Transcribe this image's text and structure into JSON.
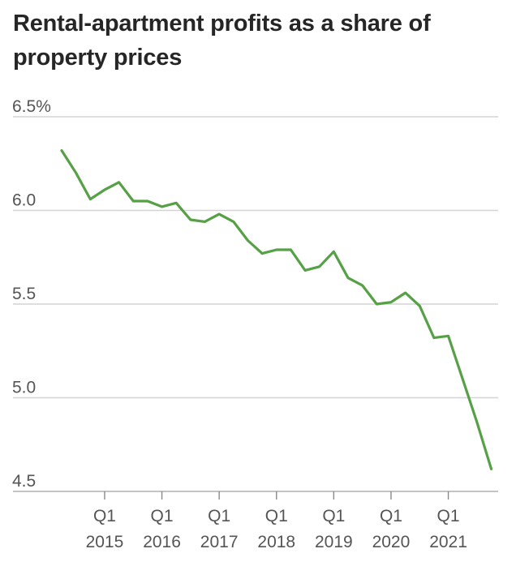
{
  "chart_data": {
    "type": "line",
    "title": "Rental-apartment profits as a share of property prices",
    "xlabel": "",
    "ylabel": "",
    "ylim": [
      4.5,
      6.5
    ],
    "y_ticks": [
      6.5,
      6.0,
      5.5,
      5.0,
      4.5
    ],
    "y_tick_labels": [
      "6.5%",
      "6.0",
      "5.5",
      "5.0",
      "4.5"
    ],
    "x_ticks": [
      {
        "index": 3,
        "q": "Q1",
        "year": "2015"
      },
      {
        "index": 7,
        "q": "Q1",
        "year": "2016"
      },
      {
        "index": 11,
        "q": "Q1",
        "year": "2017"
      },
      {
        "index": 15,
        "q": "Q1",
        "year": "2018"
      },
      {
        "index": 19,
        "q": "Q1",
        "year": "2019"
      },
      {
        "index": 23,
        "q": "Q1",
        "year": "2020"
      },
      {
        "index": 27,
        "q": "Q1",
        "year": "2021"
      }
    ],
    "series": [
      {
        "name": "Rental-apartment profits",
        "color": "#56a046",
        "values": [
          6.32,
          6.2,
          6.06,
          6.11,
          6.15,
          6.05,
          6.05,
          6.02,
          6.04,
          5.95,
          5.94,
          5.98,
          5.94,
          5.84,
          5.77,
          5.79,
          5.79,
          5.68,
          5.7,
          5.78,
          5.64,
          5.6,
          5.5,
          5.51,
          5.56,
          5.49,
          5.32,
          5.33,
          5.1,
          4.87,
          4.62
        ]
      }
    ]
  }
}
